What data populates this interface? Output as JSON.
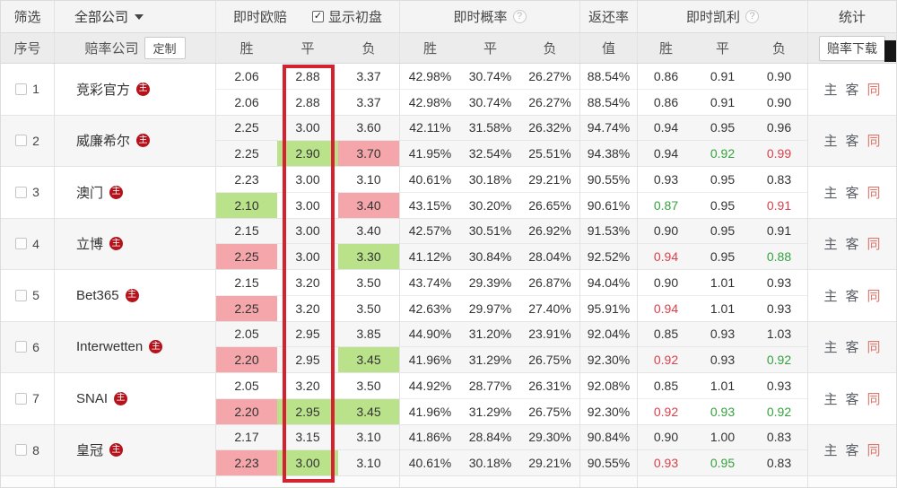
{
  "header": {
    "filter_label": "筛选",
    "company_dropdown_value": "全部公司",
    "live_odds_label": "即时欧赔",
    "show_initial_label": "显示初盘",
    "show_initial_checked": "✓",
    "live_prob_label": "即时概率",
    "live_prob_help_icon": "?",
    "return_rate_label": "返还率",
    "live_kelly_label": "即时凯利",
    "live_kelly_help_icon": "?",
    "stats_label": "统计"
  },
  "subheader": {
    "index_label": "序号",
    "company_label": "赔率公司",
    "custom_button": "定制",
    "win_label": "胜",
    "draw_label": "平",
    "lose_label": "负",
    "value_label": "值",
    "download_button": "赔率下载"
  },
  "stats_links": [
    "主",
    "客",
    "同"
  ],
  "colors": {
    "highlight_green_bg": "#b9e28a",
    "highlight_red_bg": "#f4a6ab",
    "kelly_up_text_green": "#33a23d",
    "kelly_down_text_red": "#d8414b",
    "annotation_box_red": "#d4232e",
    "company_badge_red": "#b5121b",
    "stats_same_link_red": "#e0766c"
  },
  "rows": [
    {
      "index": "1",
      "company": "竞彩官方",
      "badge": "主",
      "live": [
        "2.06",
        "2.88",
        "3.37",
        "42.98%",
        "30.74%",
        "26.27%",
        "88.54%",
        "0.86",
        "0.91",
        "0.90"
      ],
      "initial": [
        "2.06",
        "2.88",
        "3.37",
        "42.98%",
        "30.74%",
        "26.27%",
        "88.54%",
        "0.86",
        "0.91",
        "0.90"
      ],
      "initial_hl": [
        "",
        "",
        "",
        "",
        "",
        "",
        "",
        "",
        "",
        ""
      ]
    },
    {
      "index": "2",
      "company": "威廉希尔",
      "badge": "主",
      "live": [
        "2.25",
        "3.00",
        "3.60",
        "42.11%",
        "31.58%",
        "26.32%",
        "94.74%",
        "0.94",
        "0.95",
        "0.96"
      ],
      "initial": [
        "2.25",
        "2.90",
        "3.70",
        "41.95%",
        "32.54%",
        "25.51%",
        "94.38%",
        "0.94",
        "0.92",
        "0.99"
      ],
      "initial_hl": [
        "",
        "bg-green",
        "bg-red",
        "",
        "",
        "",
        "",
        "",
        "fg-green",
        "fg-red"
      ]
    },
    {
      "index": "3",
      "company": "澳门",
      "badge": "主",
      "live": [
        "2.23",
        "3.00",
        "3.10",
        "40.61%",
        "30.18%",
        "29.21%",
        "90.55%",
        "0.93",
        "0.95",
        "0.83"
      ],
      "initial": [
        "2.10",
        "3.00",
        "3.40",
        "43.15%",
        "30.20%",
        "26.65%",
        "90.61%",
        "0.87",
        "0.95",
        "0.91"
      ],
      "initial_hl": [
        "bg-green",
        "",
        "bg-red",
        "",
        "",
        "",
        "",
        "fg-green",
        "",
        "fg-red"
      ]
    },
    {
      "index": "4",
      "company": "立博",
      "badge": "主",
      "live": [
        "2.15",
        "3.00",
        "3.40",
        "42.57%",
        "30.51%",
        "26.92%",
        "91.53%",
        "0.90",
        "0.95",
        "0.91"
      ],
      "initial": [
        "2.25",
        "3.00",
        "3.30",
        "41.12%",
        "30.84%",
        "28.04%",
        "92.52%",
        "0.94",
        "0.95",
        "0.88"
      ],
      "initial_hl": [
        "bg-red",
        "",
        "bg-green",
        "",
        "",
        "",
        "",
        "fg-red",
        "",
        "fg-green"
      ]
    },
    {
      "index": "5",
      "company": "Bet365",
      "badge": "主",
      "live": [
        "2.15",
        "3.20",
        "3.50",
        "43.74%",
        "29.39%",
        "26.87%",
        "94.04%",
        "0.90",
        "1.01",
        "0.93"
      ],
      "initial": [
        "2.25",
        "3.20",
        "3.50",
        "42.63%",
        "29.97%",
        "27.40%",
        "95.91%",
        "0.94",
        "1.01",
        "0.93"
      ],
      "initial_hl": [
        "bg-red",
        "",
        "",
        "",
        "",
        "",
        "",
        "fg-red",
        "",
        ""
      ]
    },
    {
      "index": "6",
      "company": "Interwetten",
      "badge": "主",
      "live": [
        "2.05",
        "2.95",
        "3.85",
        "44.90%",
        "31.20%",
        "23.91%",
        "92.04%",
        "0.85",
        "0.93",
        "1.03"
      ],
      "initial": [
        "2.20",
        "2.95",
        "3.45",
        "41.96%",
        "31.29%",
        "26.75%",
        "92.30%",
        "0.92",
        "0.93",
        "0.92"
      ],
      "initial_hl": [
        "bg-red",
        "",
        "bg-green",
        "",
        "",
        "",
        "",
        "fg-red",
        "",
        "fg-green"
      ]
    },
    {
      "index": "7",
      "company": "SNAI",
      "badge": "主",
      "live": [
        "2.05",
        "3.20",
        "3.50",
        "44.92%",
        "28.77%",
        "26.31%",
        "92.08%",
        "0.85",
        "1.01",
        "0.93"
      ],
      "initial": [
        "2.20",
        "2.95",
        "3.45",
        "41.96%",
        "31.29%",
        "26.75%",
        "92.30%",
        "0.92",
        "0.93",
        "0.92"
      ],
      "initial_hl": [
        "bg-red",
        "bg-green",
        "bg-green",
        "",
        "",
        "",
        "",
        "fg-red",
        "fg-green",
        "fg-green"
      ]
    },
    {
      "index": "8",
      "company": "皇冠",
      "badge": "主",
      "live": [
        "2.17",
        "3.15",
        "3.10",
        "41.86%",
        "28.84%",
        "29.30%",
        "90.84%",
        "0.90",
        "1.00",
        "0.83"
      ],
      "initial": [
        "2.23",
        "3.00",
        "3.10",
        "40.61%",
        "30.18%",
        "29.21%",
        "90.55%",
        "0.93",
        "0.95",
        "0.83"
      ],
      "initial_hl": [
        "bg-red",
        "bg-green",
        "",
        "",
        "",
        "",
        "",
        "fg-red",
        "fg-green",
        ""
      ]
    }
  ]
}
